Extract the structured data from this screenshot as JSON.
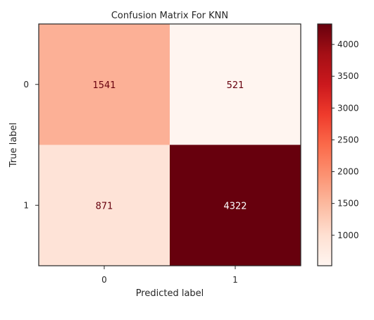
{
  "chart_data": {
    "type": "heatmap",
    "title": "Confusion Matrix For KNN",
    "xlabel": "Predicted label",
    "ylabel": "True label",
    "x_categories": [
      "0",
      "1"
    ],
    "y_categories": [
      "0",
      "1"
    ],
    "values": [
      [
        1541,
        521
      ],
      [
        871,
        4322
      ]
    ],
    "colormap": "Reds",
    "color_range": [
      521,
      4322
    ],
    "colorbar_ticks": [
      "1000",
      "1500",
      "2000",
      "2500",
      "3000",
      "3500",
      "4000"
    ],
    "colorbar_tick_values": [
      1000,
      1500,
      2000,
      2500,
      3000,
      3500,
      4000
    ],
    "cell_colors": [
      [
        "#fcb096",
        "#fff5f0"
      ],
      [
        "#fee3d7",
        "#67000d"
      ]
    ],
    "text_colors": [
      [
        "#67000d",
        "#67000d"
      ],
      [
        "#67000d",
        "#ffffff"
      ]
    ]
  }
}
